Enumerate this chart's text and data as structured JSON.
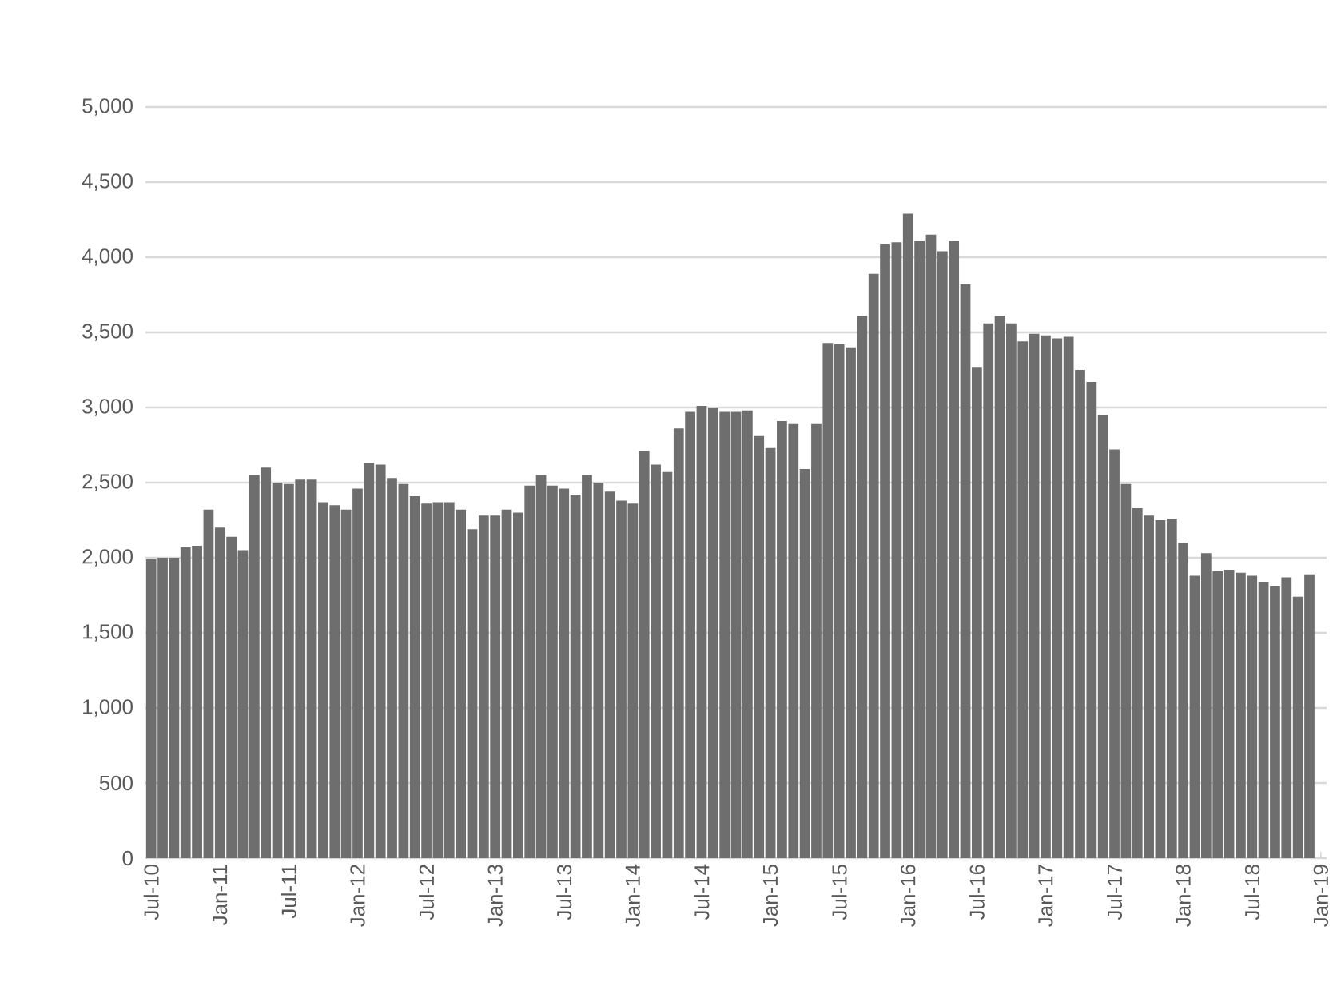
{
  "chart_data": {
    "type": "bar",
    "categories": [
      "Jul-10",
      null,
      null,
      null,
      null,
      null,
      "Jan-11",
      null,
      null,
      null,
      null,
      null,
      "Jul-11",
      null,
      null,
      null,
      null,
      null,
      "Jan-12",
      null,
      null,
      null,
      null,
      null,
      "Jul-12",
      null,
      null,
      null,
      null,
      null,
      "Jan-13",
      null,
      null,
      null,
      null,
      null,
      "Jul-13",
      null,
      null,
      null,
      null,
      null,
      "Jan-14",
      null,
      null,
      null,
      null,
      null,
      "Jul-14",
      null,
      null,
      null,
      null,
      null,
      "Jan-15",
      null,
      null,
      null,
      null,
      null,
      "Jul-15",
      null,
      null,
      null,
      null,
      null,
      "Jan-16",
      null,
      null,
      null,
      null,
      null,
      "Jul-16",
      null,
      null,
      null,
      null,
      null,
      "Jan-17",
      null,
      null,
      null,
      null,
      null,
      "Jul-17",
      null,
      null,
      null,
      null,
      null,
      "Jan-18",
      null,
      null,
      null,
      null,
      null,
      "Jul-18",
      null,
      null,
      null,
      null,
      null,
      "Jan-19"
    ],
    "values": [
      1990,
      2000,
      2000,
      2070,
      2080,
      2320,
      2200,
      2140,
      2050,
      2550,
      2600,
      2500,
      2490,
      2520,
      2520,
      2370,
      2350,
      2320,
      2460,
      2630,
      2620,
      2530,
      2490,
      2410,
      2360,
      2370,
      2370,
      2320,
      2190,
      2280,
      2280,
      2320,
      2300,
      2480,
      2550,
      2480,
      2460,
      2420,
      2550,
      2500,
      2440,
      2380,
      2360,
      2710,
      2620,
      2570,
      2860,
      2970,
      3010,
      3000,
      2970,
      2970,
      2980,
      2810,
      2730,
      2910,
      2890,
      2590,
      2890,
      3430,
      3420,
      3400,
      3610,
      3890,
      4090,
      4100,
      4290,
      4110,
      4150,
      4040,
      4110,
      3820,
      3270,
      3560,
      3610,
      3560,
      3440,
      3490,
      3480,
      3460,
      3470,
      3250,
      3170,
      2950,
      2720,
      2490,
      2330,
      2280,
      2250,
      2260,
      2100,
      1880,
      2030,
      1910,
      1920,
      1900,
      1880,
      1840,
      1810,
      1870,
      1740,
      1890,
      null
    ],
    "color": "#6e6e6e",
    "ylim": [
      0,
      5000
    ],
    "yticks": [
      0,
      500,
      {
        "value": 1000,
        "label": "1,000"
      },
      {
        "value": 1500,
        "label": "1,500"
      },
      {
        "value": 2000,
        "label": "2,000"
      },
      {
        "value": 2500,
        "label": "2,500"
      },
      {
        "value": 3000,
        "label": "3,000"
      },
      {
        "value": 3500,
        "label": "3,500"
      },
      {
        "value": 4000,
        "label": "4,000"
      },
      {
        "value": 4500,
        "label": "4,500"
      },
      {
        "value": 5000,
        "label": "5,000"
      }
    ],
    "grid": "y"
  }
}
